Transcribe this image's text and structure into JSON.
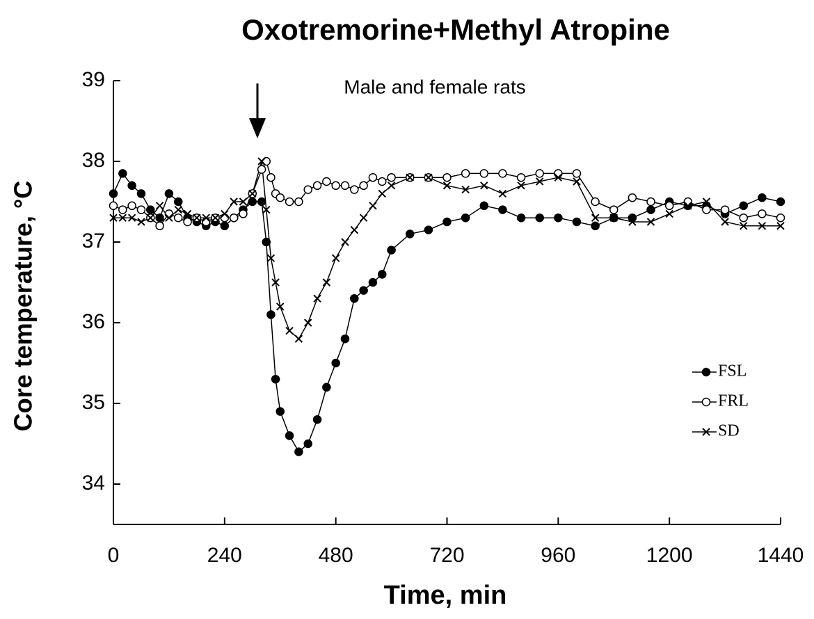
{
  "chart_data": {
    "type": "line",
    "title": "Oxotremorine+Methyl Atropine",
    "annotation": "Male and female rats",
    "xlabel": "Time, min",
    "ylabel": "Core temperature, °C",
    "xlim": [
      0,
      1440
    ],
    "ylim": [
      33.5,
      39
    ],
    "xticks": [
      0,
      240,
      480,
      720,
      960,
      1200,
      1440
    ],
    "yticks": [
      34,
      35,
      36,
      37,
      38,
      39
    ],
    "grid": false,
    "legend": "right",
    "x": [
      0,
      20,
      40,
      60,
      80,
      100,
      120,
      140,
      160,
      180,
      200,
      220,
      240,
      260,
      280,
      300,
      320,
      330,
      340,
      350,
      360,
      380,
      400,
      420,
      440,
      460,
      480,
      500,
      520,
      540,
      560,
      580,
      600,
      640,
      680,
      720,
      760,
      800,
      840,
      880,
      920,
      960,
      1000,
      1040,
      1080,
      1120,
      1160,
      1200,
      1240,
      1280,
      1320,
      1360,
      1400,
      1440
    ],
    "series": [
      {
        "name": "FSL",
        "color": "#000000",
        "marker": "filled-circle",
        "values": [
          37.6,
          37.85,
          37.7,
          37.6,
          37.4,
          37.3,
          37.6,
          37.5,
          37.3,
          37.25,
          37.2,
          37.25,
          37.2,
          37.3,
          37.4,
          37.5,
          37.5,
          37.0,
          36.1,
          35.3,
          34.9,
          34.6,
          34.4,
          34.5,
          34.8,
          35.2,
          35.5,
          35.8,
          36.3,
          36.4,
          36.5,
          36.6,
          36.9,
          37.1,
          37.15,
          37.25,
          37.3,
          37.45,
          37.4,
          37.3,
          37.3,
          37.3,
          37.25,
          37.2,
          37.3,
          37.3,
          37.4,
          37.5,
          37.45,
          37.45,
          37.35,
          37.45,
          37.55,
          37.5
        ]
      },
      {
        "name": "FRL",
        "color": "#000000",
        "marker": "open-circle",
        "values": [
          37.45,
          37.4,
          37.45,
          37.4,
          37.3,
          37.2,
          37.35,
          37.3,
          37.25,
          37.3,
          37.25,
          37.3,
          37.3,
          37.3,
          37.35,
          37.6,
          37.9,
          38.0,
          37.8,
          37.6,
          37.55,
          37.5,
          37.5,
          37.65,
          37.7,
          37.75,
          37.7,
          37.7,
          37.65,
          37.7,
          37.8,
          37.75,
          37.8,
          37.8,
          37.8,
          37.8,
          37.85,
          37.85,
          37.85,
          37.8,
          37.85,
          37.85,
          37.85,
          37.5,
          37.4,
          37.55,
          37.5,
          37.45,
          37.5,
          37.4,
          37.4,
          37.3,
          37.35,
          37.3
        ]
      },
      {
        "name": "SD",
        "color": "#000000",
        "marker": "x",
        "values": [
          37.3,
          37.3,
          37.3,
          37.25,
          37.3,
          37.45,
          37.3,
          37.4,
          37.35,
          37.3,
          37.3,
          37.3,
          37.35,
          37.5,
          37.5,
          37.6,
          38.0,
          37.4,
          36.8,
          36.5,
          36.2,
          35.9,
          35.8,
          36.0,
          36.3,
          36.5,
          36.8,
          37.0,
          37.15,
          37.3,
          37.45,
          37.6,
          37.7,
          37.8,
          37.8,
          37.7,
          37.65,
          37.7,
          37.6,
          37.7,
          37.75,
          37.8,
          37.75,
          37.3,
          37.3,
          37.25,
          37.25,
          37.35,
          37.45,
          37.5,
          37.25,
          37.2,
          37.2,
          37.2
        ]
      }
    ]
  }
}
